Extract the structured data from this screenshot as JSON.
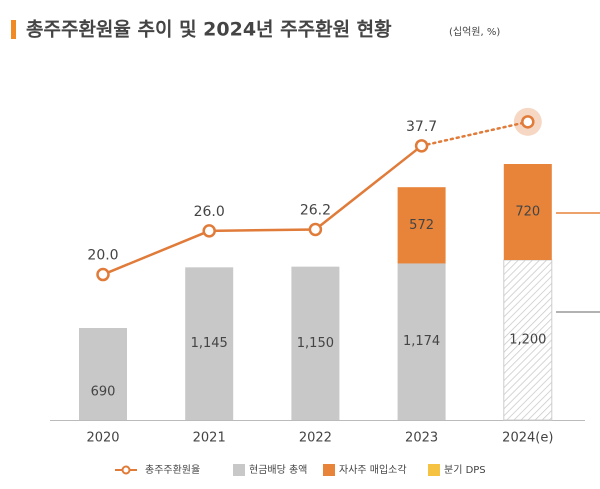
{
  "chart_data": {
    "type": "combo",
    "title": "총주주환원율 추이 및 2024년 주주환원 현황",
    "unit": "(십억원, %)",
    "categories": [
      "2020",
      "2021",
      "2022",
      "2023",
      "2024(e)"
    ],
    "series": [
      {
        "name": "총주주환원율",
        "type": "line",
        "axis": "y2",
        "color": "#e07b39",
        "values": [
          20,
          26,
          26.2,
          37.7,
          41
        ],
        "value_labels": [
          "20.0",
          "26.0",
          "26.2",
          "37.7",
          null
        ]
      },
      {
        "name": "현금배당 총액",
        "type": "bar",
        "color": "#c8c8c8",
        "values": [
          690,
          1145,
          1150,
          1174,
          1200
        ],
        "value_labels": [
          "690",
          "1,145",
          "1,150",
          "1,174",
          "1,200"
        ]
      },
      {
        "name": "자사주 매입소각",
        "type": "bar",
        "color": "#e8843a",
        "values": [
          null,
          null,
          null,
          572,
          720
        ]
      },
      {
        "name": "분기 DPS",
        "type": "bar",
        "color": "#f5c242",
        "values": [
          null,
          null,
          null,
          null,
          null
        ]
      }
    ],
    "stacked": true,
    "ylim": [
      0,
      3000
    ],
    "y2lim": [
      0,
      55
    ]
  }
}
